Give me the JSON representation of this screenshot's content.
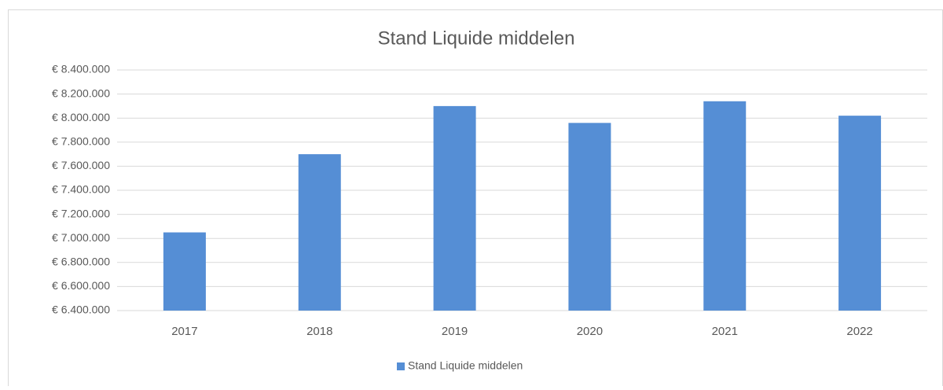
{
  "chart_data": {
    "type": "bar",
    "title": "Stand Liquide middelen",
    "categories": [
      "2017",
      "2018",
      "2019",
      "2020",
      "2021",
      "2022"
    ],
    "series": [
      {
        "name": "Stand Liquide middelen",
        "color": "#558ed5",
        "values": [
          7050000,
          7700000,
          8100000,
          7960000,
          8140000,
          8020000
        ]
      }
    ],
    "ylim": [
      6400000,
      8400000
    ],
    "yticks": [
      {
        "value": 6400000,
        "label": "€ 6.400.000"
      },
      {
        "value": 6600000,
        "label": "€ 6.600.000"
      },
      {
        "value": 6800000,
        "label": "€ 6.800.000"
      },
      {
        "value": 7000000,
        "label": "€ 7.000.000"
      },
      {
        "value": 7200000,
        "label": "€ 7.200.000"
      },
      {
        "value": 7400000,
        "label": "€ 7.400.000"
      },
      {
        "value": 7600000,
        "label": "€ 7.600.000"
      },
      {
        "value": 7800000,
        "label": "€ 7.800.000"
      },
      {
        "value": 8000000,
        "label": "€ 8.000.000"
      },
      {
        "value": 8200000,
        "label": "€ 8.200.000"
      },
      {
        "value": 8400000,
        "label": "€ 8.400.000"
      }
    ],
    "grid": true,
    "legend": "bottom"
  }
}
